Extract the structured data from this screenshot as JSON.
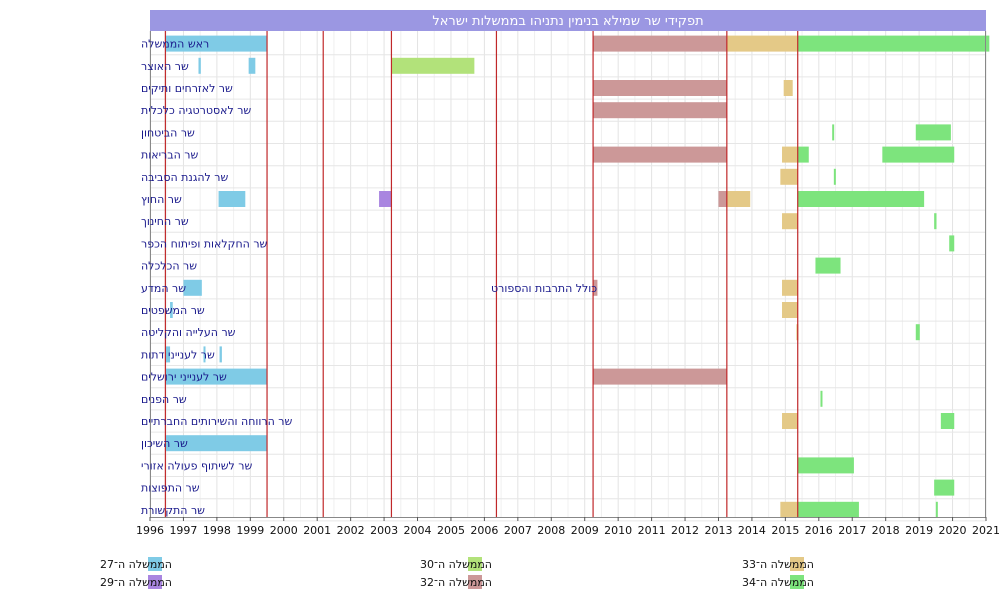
{
  "chart_data": {
    "type": "timeline",
    "title": "תפקידי שר שמילא בנימין נתניהו בממשלות ישראל",
    "xlim": [
      1996,
      2021
    ],
    "x_ticks": [
      1996,
      1997,
      1998,
      1999,
      2000,
      2001,
      2002,
      2003,
      2004,
      2005,
      2006,
      2007,
      2008,
      2009,
      2010,
      2011,
      2012,
      2013,
      2014,
      2015,
      2016,
      2017,
      2018,
      2019,
      2020,
      2021
    ],
    "grid": true,
    "legend_position": "bottom",
    "rows": [
      "ראש הממשלה",
      "שר האוצר",
      "שר לאזרחים ותיקים",
      "שר לאסטרטגיה כלכלית",
      "שר הביטחון",
      "שר הבריאות",
      "שר להגנת הסביבה",
      "שר החוץ",
      "שר החינוך",
      "שר החקלאות ופיתוח הכפר",
      "שר הכלכלה",
      "שר המדע",
      "שר המשפטים",
      "שר העלייה והקליטה",
      "שר לענייני דתות",
      "שר לענייני ירושלים",
      "שר הפנים",
      "שר הרווחה והשירותים החברתיים",
      "שר השיכון",
      "שר לשיתוף פעולה אזורי",
      "שר התפוצות",
      "שר התקשורת"
    ],
    "governments": [
      {
        "id": "g27",
        "label": "הממשלה ה־27",
        "color": "#7fcbe6"
      },
      {
        "id": "g29",
        "label": "הממשלה ה־29",
        "color": "#a985e0"
      },
      {
        "id": "g30",
        "label": "הממשלה ה־30",
        "color": "#b2e27a"
      },
      {
        "id": "g32",
        "label": "הממשלה ה־32",
        "color": "#cc9898"
      },
      {
        "id": "g33",
        "label": "הממשלה ה־33",
        "color": "#e4c987"
      },
      {
        "id": "g34",
        "label": "הממשלה ה־34",
        "color": "#7de47d"
      }
    ],
    "government_boundaries": [
      1996.46,
      1999.5,
      2001.18,
      2003.22,
      2006.36,
      2009.25,
      2013.25,
      2015.37
    ],
    "bars": [
      {
        "row": 0,
        "gov": "g27",
        "start": 1996.46,
        "end": 1999.5
      },
      {
        "row": 0,
        "gov": "g32",
        "start": 2009.25,
        "end": 2013.25
      },
      {
        "row": 0,
        "gov": "g33",
        "start": 2013.25,
        "end": 2015.37
      },
      {
        "row": 0,
        "gov": "g34",
        "start": 2015.37,
        "end": 2021.1
      },
      {
        "row": 1,
        "gov": "g27",
        "start": 1997.45,
        "end": 1997.52
      },
      {
        "row": 1,
        "gov": "g27",
        "start": 1998.95,
        "end": 1999.15
      },
      {
        "row": 1,
        "gov": "g30",
        "start": 2003.22,
        "end": 2005.7
      },
      {
        "row": 2,
        "gov": "g32",
        "start": 2009.25,
        "end": 2013.25
      },
      {
        "row": 2,
        "gov": "g33",
        "start": 2014.95,
        "end": 2015.22
      },
      {
        "row": 3,
        "gov": "g32",
        "start": 2009.25,
        "end": 2013.25
      },
      {
        "row": 4,
        "gov": "g34",
        "start": 2016.4,
        "end": 2016.45
      },
      {
        "row": 4,
        "gov": "g34",
        "start": 2018.9,
        "end": 2019.95
      },
      {
        "row": 5,
        "gov": "g32",
        "start": 2009.25,
        "end": 2013.25
      },
      {
        "row": 5,
        "gov": "g33",
        "start": 2014.9,
        "end": 2015.37
      },
      {
        "row": 5,
        "gov": "g34",
        "start": 2015.37,
        "end": 2015.7
      },
      {
        "row": 5,
        "gov": "g34",
        "start": 2017.9,
        "end": 2020.05
      },
      {
        "row": 6,
        "gov": "g33",
        "start": 2014.85,
        "end": 2015.37
      },
      {
        "row": 6,
        "gov": "g34",
        "start": 2016.45,
        "end": 2016.5
      },
      {
        "row": 7,
        "gov": "g27",
        "start": 1998.05,
        "end": 1998.85
      },
      {
        "row": 7,
        "gov": "g29",
        "start": 2002.85,
        "end": 2003.22
      },
      {
        "row": 7,
        "gov": "g32",
        "start": 2013.0,
        "end": 2013.25
      },
      {
        "row": 7,
        "gov": "g33",
        "start": 2013.25,
        "end": 2013.95
      },
      {
        "row": 7,
        "gov": "g34",
        "start": 2015.37,
        "end": 2019.15
      },
      {
        "row": 8,
        "gov": "g33",
        "start": 2014.9,
        "end": 2015.37
      },
      {
        "row": 8,
        "gov": "g34",
        "start": 2019.45,
        "end": 2019.52
      },
      {
        "row": 9,
        "gov": "g34",
        "start": 2019.9,
        "end": 2020.05
      },
      {
        "row": 10,
        "gov": "g34",
        "start": 2015.9,
        "end": 2016.65
      },
      {
        "row": 11,
        "gov": "g27",
        "start": 1997.0,
        "end": 1997.55
      },
      {
        "row": 11,
        "gov": "g32",
        "start": 2009.25,
        "end": 2009.38
      },
      {
        "row": 11,
        "gov": "g33",
        "start": 2014.9,
        "end": 2015.37
      },
      {
        "row": 12,
        "gov": "g27",
        "start": 1996.6,
        "end": 1996.68
      },
      {
        "row": 12,
        "gov": "g33",
        "start": 2014.9,
        "end": 2015.37
      },
      {
        "row": 13,
        "gov": "g33",
        "start": 2015.33,
        "end": 2015.37
      },
      {
        "row": 13,
        "gov": "g34",
        "start": 2018.9,
        "end": 2019.02
      },
      {
        "row": 14,
        "gov": "g27",
        "start": 1996.46,
        "end": 1996.6
      },
      {
        "row": 14,
        "gov": "g27",
        "start": 1997.6,
        "end": 1997.65
      },
      {
        "row": 14,
        "gov": "g27",
        "start": 1998.08,
        "end": 1998.15
      },
      {
        "row": 15,
        "gov": "g27",
        "start": 1996.46,
        "end": 1999.5
      },
      {
        "row": 15,
        "gov": "g32",
        "start": 2009.25,
        "end": 2013.25
      },
      {
        "row": 16,
        "gov": "g34",
        "start": 2016.05,
        "end": 2016.1
      },
      {
        "row": 17,
        "gov": "g33",
        "start": 2014.9,
        "end": 2015.37
      },
      {
        "row": 17,
        "gov": "g34",
        "start": 2019.65,
        "end": 2020.05
      },
      {
        "row": 18,
        "gov": "g27",
        "start": 1996.46,
        "end": 1999.5
      },
      {
        "row": 19,
        "gov": "g34",
        "start": 2015.37,
        "end": 2017.05
      },
      {
        "row": 20,
        "gov": "g34",
        "start": 2019.45,
        "end": 2020.05
      },
      {
        "row": 21,
        "gov": "g33",
        "start": 2014.85,
        "end": 2015.37
      },
      {
        "row": 21,
        "gov": "g34",
        "start": 2015.37,
        "end": 2017.2
      },
      {
        "row": 21,
        "gov": "g34",
        "start": 2019.5,
        "end": 2019.55
      }
    ],
    "annotations": [
      {
        "text": "כולל התרבות והספורט",
        "row": 11,
        "x": 2009.25
      }
    ]
  }
}
